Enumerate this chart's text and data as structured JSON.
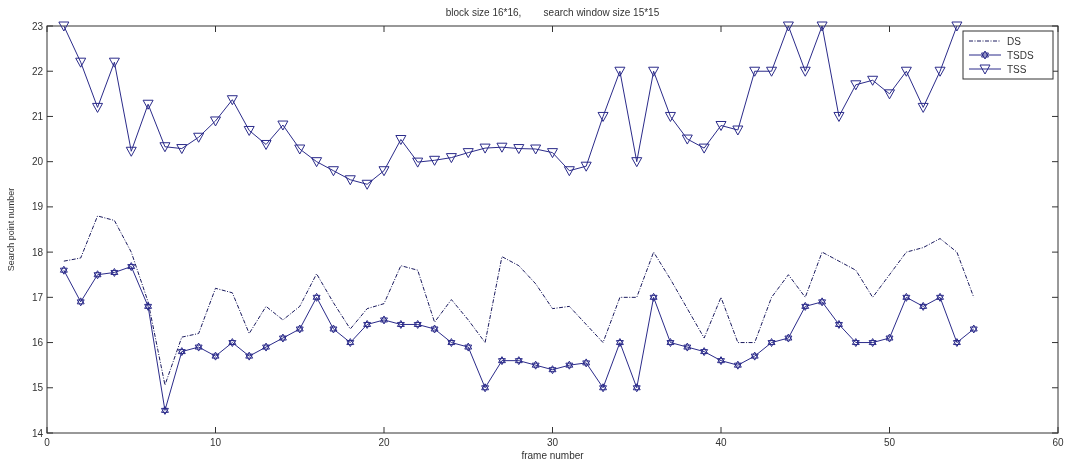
{
  "chart_data": {
    "type": "line",
    "title": "block size 16*16,        search window size 15*15",
    "xlabel": "frame number",
    "ylabel": "Search point number",
    "x": [
      1,
      2,
      3,
      4,
      5,
      6,
      7,
      8,
      9,
      10,
      11,
      12,
      13,
      14,
      15,
      16,
      17,
      18,
      19,
      20,
      21,
      22,
      23,
      24,
      25,
      26,
      27,
      28,
      29,
      30,
      31,
      32,
      33,
      34,
      35,
      36,
      37,
      38,
      39,
      40,
      41,
      42,
      43,
      44,
      45,
      46,
      47,
      48,
      49,
      50,
      51,
      52,
      53,
      54,
      55
    ],
    "xlim": [
      0,
      60
    ],
    "xticks": [
      0,
      10,
      20,
      30,
      40,
      50,
      60
    ],
    "ylim": [
      14,
      23
    ],
    "yticks": [
      14,
      15,
      16,
      17,
      18,
      19,
      20,
      21,
      22,
      23
    ],
    "legend": "top right",
    "series": [
      {
        "name": "DS",
        "color": "#1a1a5e",
        "marker": "none",
        "line_style": "dashed",
        "values": [
          17.8,
          17.87,
          18.8,
          18.7,
          18.0,
          16.9,
          15.06,
          16.12,
          16.2,
          17.2,
          17.1,
          16.2,
          16.8,
          16.5,
          16.8,
          17.52,
          16.88,
          16.3,
          16.75,
          16.86,
          17.7,
          17.6,
          16.45,
          16.95,
          16.5,
          16.0,
          17.9,
          17.7,
          17.3,
          16.75,
          16.8,
          16.4,
          16.0,
          17.0,
          17.0,
          18.0,
          17.4,
          16.75,
          16.1,
          17.0,
          16.0,
          16.0,
          17.0,
          17.5,
          17.0,
          18.0,
          17.8,
          17.6,
          17.0,
          17.5,
          18.0,
          18.1,
          18.3,
          18.0,
          17.0
        ]
      },
      {
        "name": "TSDS",
        "color": "#2b2b8a",
        "marker": "star",
        "line_style": "solid",
        "values": [
          17.6,
          16.9,
          17.5,
          17.55,
          17.68,
          16.8,
          14.5,
          15.8,
          15.9,
          15.7,
          16.0,
          15.7,
          15.9,
          16.1,
          16.3,
          17.0,
          16.3,
          16.0,
          16.4,
          16.5,
          16.4,
          16.4,
          16.3,
          16.0,
          15.9,
          15.0,
          15.6,
          15.6,
          15.5,
          15.4,
          15.5,
          15.55,
          15.0,
          16.0,
          15.0,
          17.0,
          16.0,
          15.9,
          15.8,
          15.6,
          15.5,
          15.7,
          16.0,
          16.1,
          16.8,
          16.9,
          16.4,
          16.0,
          16.0,
          16.1,
          17.0,
          16.8,
          17.0,
          16.0,
          16.3
        ]
      },
      {
        "name": "TSS",
        "color": "#2b2b8a",
        "marker": "triangle",
        "line_style": "solid",
        "values": [
          23.0,
          22.2,
          21.2,
          22.2,
          20.23,
          21.27,
          20.33,
          20.29,
          20.54,
          20.9,
          21.37,
          20.69,
          20.38,
          20.81,
          20.28,
          20.0,
          19.8,
          19.6,
          19.5,
          19.8,
          20.49,
          19.99,
          20.03,
          20.09,
          20.2,
          20.3,
          20.32,
          20.29,
          20.28,
          20.2,
          19.8,
          19.9,
          21.0,
          22.0,
          20.0,
          22.0,
          21.0,
          20.5,
          20.3,
          20.8,
          20.7,
          22.0,
          22.0,
          23.0,
          22.0,
          23.0,
          21.0,
          21.7,
          21.8,
          21.5,
          22.0,
          21.2,
          22.0,
          23.0,
          null
        ]
      }
    ]
  }
}
